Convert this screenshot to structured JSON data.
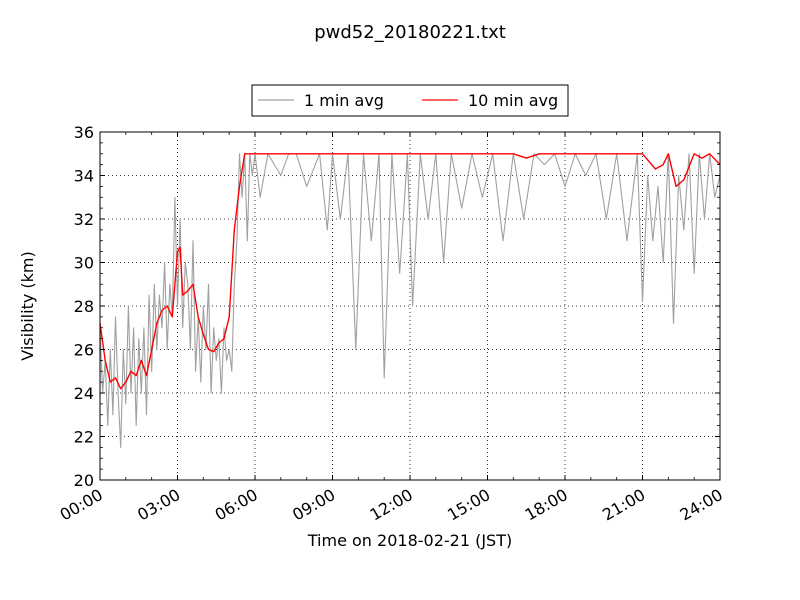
{
  "chart_data": {
    "type": "line",
    "title": "pwd52_20180221.txt",
    "xlabel": "Time on 2018-02-21 (JST)",
    "ylabel": "Visibility (km)",
    "xlim": [
      0,
      24
    ],
    "ylim": [
      20,
      36
    ],
    "grid": true,
    "legend_placement": "top-center, above plot",
    "x_ticks": [
      {
        "value": 0,
        "label": "00:00"
      },
      {
        "value": 3,
        "label": "03:00"
      },
      {
        "value": 6,
        "label": "06:00"
      },
      {
        "value": 9,
        "label": "09:00"
      },
      {
        "value": 12,
        "label": "12:00"
      },
      {
        "value": 15,
        "label": "15:00"
      },
      {
        "value": 18,
        "label": "18:00"
      },
      {
        "value": 21,
        "label": "21:00"
      },
      {
        "value": 24,
        "label": "24:00"
      }
    ],
    "y_ticks": [
      {
        "value": 20,
        "label": "20"
      },
      {
        "value": 22,
        "label": "22"
      },
      {
        "value": 24,
        "label": "24"
      },
      {
        "value": 26,
        "label": "26"
      },
      {
        "value": 28,
        "label": "28"
      },
      {
        "value": 30,
        "label": "30"
      },
      {
        "value": 32,
        "label": "32"
      },
      {
        "value": 34,
        "label": "34"
      },
      {
        "value": 36,
        "label": "36"
      }
    ],
    "series": [
      {
        "name": "1 min avg",
        "color": "#a0a0a0",
        "x": [
          0.0,
          0.1,
          0.2,
          0.3,
          0.4,
          0.5,
          0.6,
          0.7,
          0.8,
          0.9,
          1.0,
          1.1,
          1.2,
          1.3,
          1.4,
          1.5,
          1.6,
          1.7,
          1.8,
          1.9,
          2.0,
          2.1,
          2.2,
          2.3,
          2.4,
          2.5,
          2.6,
          2.7,
          2.8,
          2.9,
          3.0,
          3.1,
          3.2,
          3.3,
          3.4,
          3.5,
          3.6,
          3.7,
          3.8,
          3.9,
          4.0,
          4.1,
          4.2,
          4.3,
          4.4,
          4.5,
          4.6,
          4.7,
          4.8,
          4.9,
          5.0,
          5.1,
          5.2,
          5.3,
          5.4,
          5.5,
          5.6,
          5.7,
          5.8,
          5.9,
          6.0,
          6.2,
          6.5,
          7.0,
          7.3,
          7.6,
          8.0,
          8.5,
          8.8,
          9.0,
          9.3,
          9.6,
          9.9,
          10.2,
          10.5,
          10.8,
          11.0,
          11.3,
          11.6,
          11.9,
          12.1,
          12.4,
          12.7,
          13.0,
          13.3,
          13.6,
          14.0,
          14.4,
          14.8,
          15.2,
          15.6,
          16.0,
          16.4,
          16.8,
          17.2,
          17.6,
          18.0,
          18.4,
          18.8,
          19.2,
          19.6,
          20.0,
          20.4,
          20.8,
          21.0,
          21.2,
          21.4,
          21.6,
          21.8,
          22.0,
          22.2,
          22.4,
          22.6,
          22.8,
          23.0,
          23.2,
          23.4,
          23.6,
          23.8,
          24.0
        ],
        "y": [
          27,
          24,
          25.5,
          22.5,
          26,
          23,
          27.5,
          24,
          21.5,
          26,
          23.5,
          28,
          24,
          27,
          22.5,
          26.5,
          24,
          27,
          23,
          28.5,
          25,
          29,
          26,
          28.5,
          27,
          30,
          26,
          29,
          27.5,
          33,
          28,
          32,
          27,
          30,
          29,
          26,
          31,
          25,
          27.5,
          24.5,
          28,
          26,
          29,
          24,
          27,
          25.5,
          26.5,
          24,
          27,
          25.5,
          26,
          25,
          29,
          31,
          35,
          33,
          35,
          31,
          35,
          34,
          35,
          33,
          35,
          34,
          35,
          35,
          33.5,
          35,
          31.5,
          35,
          32,
          35,
          26,
          35,
          31,
          35,
          24.7,
          35,
          29.5,
          35,
          28,
          35,
          32,
          35,
          30,
          35,
          32.5,
          35,
          33,
          35,
          31,
          35,
          32,
          35,
          34.5,
          35,
          33.5,
          35,
          34,
          35,
          32,
          35,
          31,
          35,
          28.2,
          34,
          31,
          33.5,
          30,
          35,
          27.2,
          34,
          31.5,
          35,
          29.5,
          35,
          32,
          35,
          33,
          34
        ],
        "values_note": "representative samples read from noisy trace"
      },
      {
        "name": "10 min avg",
        "color": "#ff0000",
        "x": [
          0.0,
          0.2,
          0.4,
          0.6,
          0.8,
          1.0,
          1.2,
          1.4,
          1.6,
          1.8,
          2.0,
          2.2,
          2.4,
          2.6,
          2.8,
          3.0,
          3.1,
          3.2,
          3.4,
          3.6,
          3.8,
          4.0,
          4.2,
          4.4,
          4.6,
          4.8,
          5.0,
          5.2,
          5.4,
          5.6,
          5.8,
          6.0,
          8.0,
          10.0,
          12.0,
          14.0,
          16.0,
          16.5,
          17.0,
          18.0,
          20.0,
          21.0,
          21.5,
          21.8,
          22.0,
          22.3,
          22.6,
          23.0,
          23.3,
          23.6,
          24.0
        ],
        "y": [
          27.2,
          25.5,
          24.5,
          24.7,
          24.2,
          24.5,
          25,
          24.8,
          25.5,
          24.8,
          26,
          27.2,
          27.8,
          28,
          27.5,
          30.5,
          30.7,
          28.5,
          28.7,
          29,
          27.5,
          26.7,
          26,
          25.9,
          26.3,
          26.5,
          27.5,
          31.5,
          33.5,
          35,
          35,
          35,
          35,
          35,
          35,
          35,
          35,
          34.8,
          35,
          35,
          35,
          35,
          34.3,
          34.5,
          35,
          33.5,
          33.8,
          35,
          34.8,
          35,
          34.5
        ]
      }
    ]
  }
}
